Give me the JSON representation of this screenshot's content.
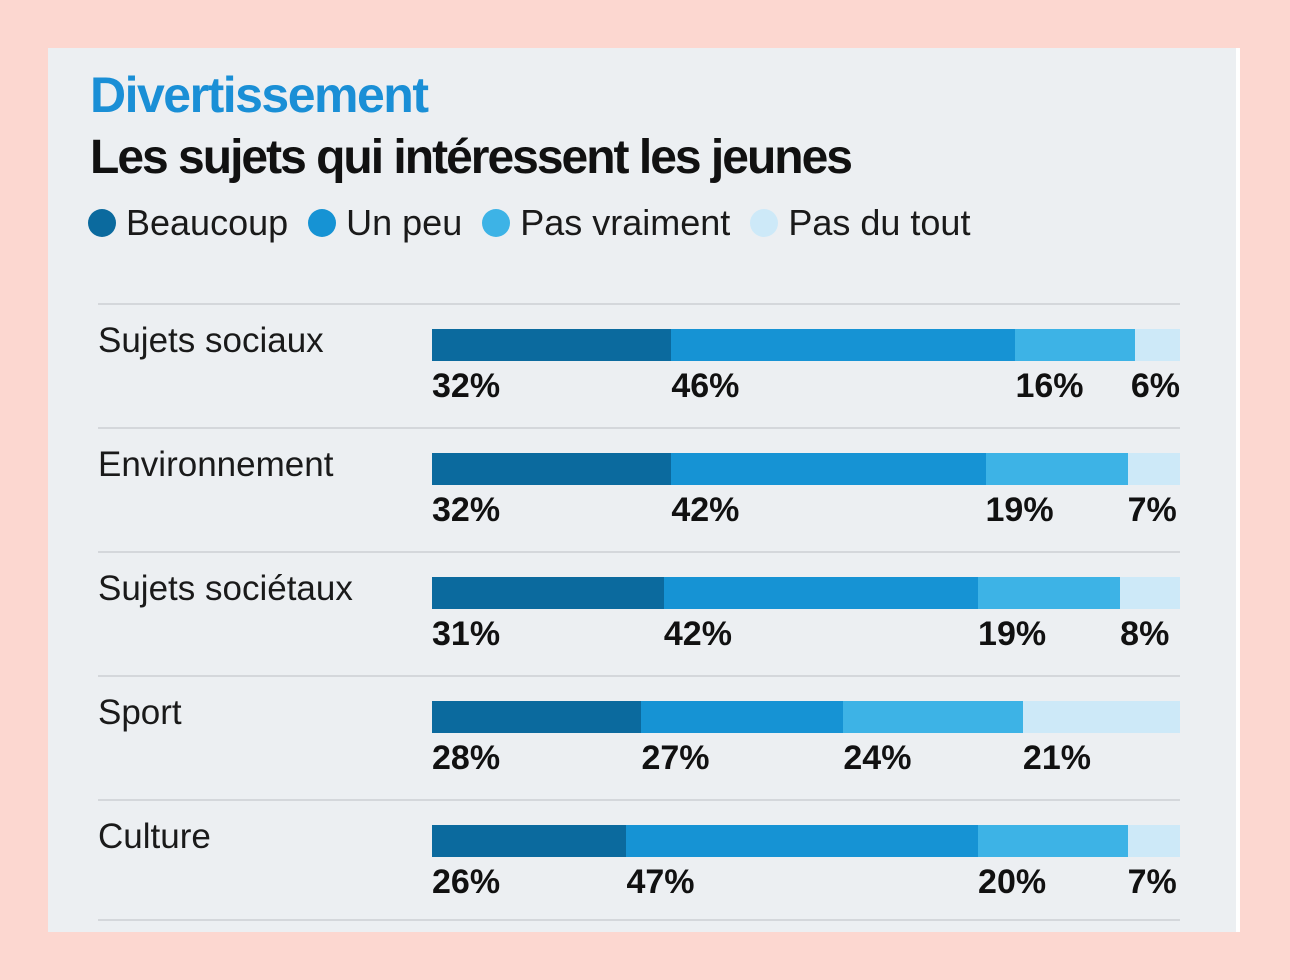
{
  "header": {
    "kicker": "Divertissement",
    "title": "Les sujets qui intéressent  les jeunes"
  },
  "legend": [
    {
      "label": "Beaucoup",
      "color": "#0b6a9e"
    },
    {
      "label": "Un peu",
      "color": "#1693d4"
    },
    {
      "label": "Pas vraiment",
      "color": "#3db3e6"
    },
    {
      "label": "Pas du tout",
      "color": "#cde9f8"
    }
  ],
  "chart_data": {
    "type": "bar",
    "orientation": "horizontal",
    "stacked": true,
    "percent": true,
    "categories": [
      "Sujets sociaux",
      "Environnement",
      "Sujets sociétaux",
      "Sport",
      "Culture"
    ],
    "series": [
      {
        "name": "Beaucoup",
        "values": [
          32,
          32,
          31,
          28,
          26
        ]
      },
      {
        "name": "Un peu",
        "values": [
          46,
          42,
          42,
          27,
          47
        ]
      },
      {
        "name": "Pas vraiment",
        "values": [
          16,
          19,
          19,
          24,
          20
        ]
      },
      {
        "name": "Pas du tout",
        "values": [
          6,
          7,
          8,
          21,
          7
        ]
      }
    ],
    "value_labels": [
      [
        "32%",
        "46%",
        "16%",
        "6%"
      ],
      [
        "32%",
        "42%",
        "19%",
        "7%"
      ],
      [
        "31%",
        "42%",
        "19%",
        "8%"
      ],
      [
        "28%",
        "27%",
        "24%",
        "21%"
      ],
      [
        "26%",
        "47%",
        "20%",
        "7%"
      ]
    ],
    "xlim": [
      0,
      100
    ],
    "legend_position": "top-left"
  }
}
